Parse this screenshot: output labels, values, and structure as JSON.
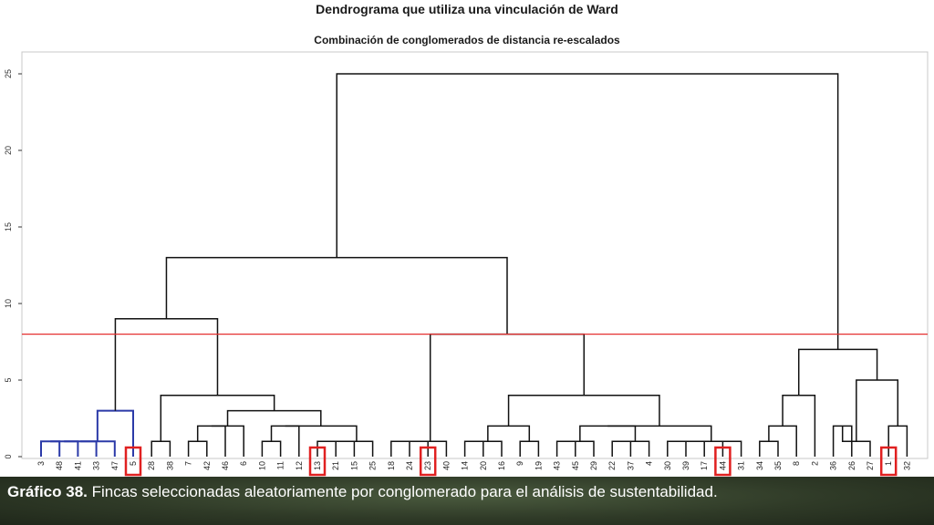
{
  "chart_data": {
    "type": "dendrogram",
    "title": "Dendrograma que utiliza una vinculación de Ward",
    "subtitle": "Combinación de conglomerados de distancia re-escalados",
    "ylim": [
      0,
      25
    ],
    "yticks": [
      "0",
      "5",
      "10",
      "15",
      "20",
      "25"
    ],
    "leaves": [
      "3",
      "48",
      "41",
      "33",
      "47",
      "5",
      "28",
      "38",
      "7",
      "42",
      "46",
      "6",
      "10",
      "11",
      "12",
      "13",
      "21",
      "15",
      "25",
      "18",
      "24",
      "23",
      "40",
      "14",
      "20",
      "16",
      "9",
      "19",
      "43",
      "45",
      "29",
      "22",
      "37",
      "4",
      "30",
      "39",
      "17",
      "44",
      "31",
      "34",
      "35",
      "8",
      "2",
      "36",
      "26",
      "27",
      "1",
      "32"
    ],
    "cut_height": 8,
    "highlighted_leaves": [
      "5",
      "13",
      "23",
      "44",
      "1"
    ],
    "merges": [
      {
        "a": "3",
        "b": "48",
        "height": 1
      },
      {
        "a": "3+48",
        "b": "41",
        "height": 1
      },
      {
        "a": "3+48+41",
        "b": "33",
        "height": 1
      },
      {
        "a": "3+48+41+33",
        "b": "47",
        "height": 1
      },
      {
        "a": "3..47",
        "b": "5",
        "height": 3
      },
      {
        "a": "28",
        "b": "38",
        "height": 1
      },
      {
        "a": "7",
        "b": "42",
        "height": 1
      },
      {
        "a": "7+42",
        "b": "46",
        "height": 2
      },
      {
        "a": "7+42+46",
        "b": "6",
        "height": 2
      },
      {
        "a": "10",
        "b": "11",
        "height": 1
      },
      {
        "a": "10+11",
        "b": "12",
        "height": 2
      },
      {
        "a": "13",
        "b": "21",
        "height": 1
      },
      {
        "a": "13+21",
        "b": "15",
        "height": 1
      },
      {
        "a": "13+21+15",
        "b": "25",
        "height": 1
      },
      {
        "a": "10+11+12",
        "b": "13+21+15+25",
        "height": 2
      },
      {
        "a": "7..6",
        "b": "10..25",
        "height": 3
      },
      {
        "a": "28+38",
        "b": "7..25",
        "height": 4
      },
      {
        "a": "3..5",
        "b": "28..25",
        "height": 9
      },
      {
        "a": "18",
        "b": "24",
        "height": 1
      },
      {
        "a": "18+24",
        "b": "23",
        "height": 1
      },
      {
        "a": "18+24+23",
        "b": "40",
        "height": 1
      },
      {
        "a": "14",
        "b": "20",
        "height": 1
      },
      {
        "a": "14+20",
        "b": "16",
        "height": 1
      },
      {
        "a": "9",
        "b": "19",
        "height": 1
      },
      {
        "a": "14+20+16",
        "b": "9+19",
        "height": 2
      },
      {
        "a": "43",
        "b": "45",
        "height": 1
      },
      {
        "a": "43+45",
        "b": "29",
        "height": 1
      },
      {
        "a": "22",
        "b": "37",
        "height": 1
      },
      {
        "a": "22+37",
        "b": "4",
        "height": 1
      },
      {
        "a": "43+45+29",
        "b": "22+37+4",
        "height": 2
      },
      {
        "a": "30",
        "b": "39",
        "height": 1
      },
      {
        "a": "30+39",
        "b": "17",
        "height": 1
      },
      {
        "a": "44",
        "b": "31",
        "height": 1
      },
      {
        "a": "30+39+17",
        "b": "44+31",
        "height": 1
      },
      {
        "a": "43..4",
        "b": "30..31",
        "height": 2
      },
      {
        "a": "14..19",
        "b": "43..31",
        "height": 4
      },
      {
        "a": "18..40",
        "b": "14..31",
        "height": 8
      },
      {
        "a": "3..25",
        "b": "18..31",
        "height": 13
      },
      {
        "a": "34",
        "b": "35",
        "height": 1
      },
      {
        "a": "34+35",
        "b": "8",
        "height": 2
      },
      {
        "a": "34+35+8",
        "b": "2",
        "height": 4
      },
      {
        "a": "36",
        "b": "26",
        "height": 2
      },
      {
        "a": "26+36",
        "b": "27",
        "height": 1
      },
      {
        "a": "1",
        "b": "32",
        "height": 2
      },
      {
        "a": "36+26+27",
        "b": "1+32",
        "height": 5
      },
      {
        "a": "34..2",
        "b": "36..32",
        "height": 7
      },
      {
        "a": "3..31",
        "b": "34..32",
        "height": 25
      }
    ]
  },
  "colors": {
    "link": "#111111",
    "highlight_link": "#2b3aa8",
    "cut_line": "#e53030",
    "leaf_box": "#e02020",
    "plot_border": "#c8c8c8"
  },
  "caption": {
    "label": "Gráfico 38.",
    "text": " Fincas seleccionadas aleatoriamente por conglomerado para el análisis de sustentabilidad."
  }
}
